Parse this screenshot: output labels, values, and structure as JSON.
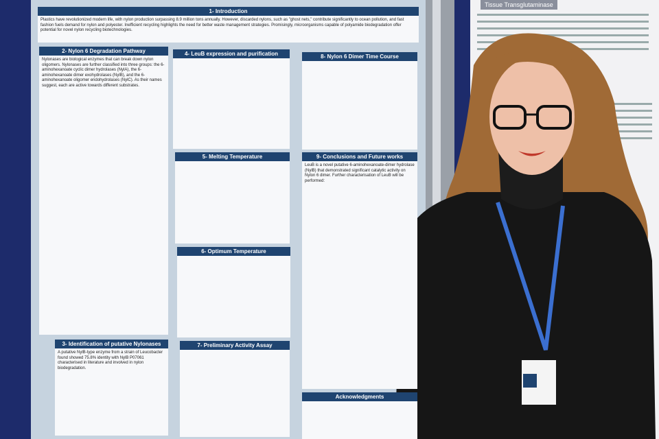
{
  "poster": {
    "introduction": {
      "title": "1- Introduction",
      "text": "Plastics have revolutionized modern life, with nylon production surpassing 8.9 million tons annually. However, discarded nylons, such as \"ghost nets,\" contribute significantly to ocean pollution, and fast fashion fuels demand for nylon and polyester. Inefficient recycling highlights the need for better waste management strategies. Promisingly, microorganisms capable of polyamide biodegradation offer potential for novel nylon recycling biotechnologies."
    },
    "sections": [
      {
        "title": "2- Nylon 6 Degradation Pathway",
        "text": "Nylonases are biological enzymes that can break down nylon oligomers. Nylonases are further classified into three groups: the 6-aminohexanoate cyclic dimer hydrolases (NylA), the 6-aminohexanoate dimer exohydrolases (NylB), and the 6-aminohexanoate oligomer endohydrolases (NylC). As their names suggest, each are active towards different substrates."
      },
      {
        "title": "4- LeuB expression and purification"
      },
      {
        "title": "8- Nylon 6 Dimer Time Course"
      },
      {
        "title": "5- Melting Temperature"
      },
      {
        "title": "9- Conclusions and Future works",
        "text": "LeuB is a novel putative 6-aminohexanoate-dimer hydrolase (NylB) that demonstrated significant catalytic activity on Nylon 6 dimer. Further characterisation of LeuB will be performed:"
      },
      {
        "title": "6- Optimum Temperature"
      },
      {
        "title": "3- Identification of putative Nylonases",
        "text": "A putative NylB-type enzyme from a strain of Leucobacter found showed 75.8% identity with NylB P07061 characterised in literature and involved in nylon biodegradation."
      },
      {
        "title": "7- Preliminary Activity Assay"
      },
      {
        "title": "Acknowledgments"
      }
    ]
  },
  "side_poster": {
    "title": "Tissue Transglutaminase"
  }
}
